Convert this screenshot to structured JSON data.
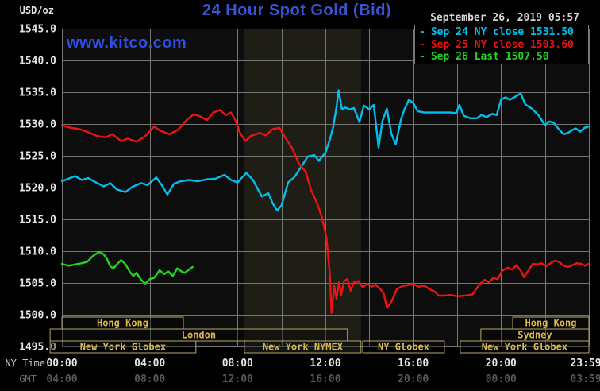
{
  "header": {
    "units_label": "USD/oz",
    "title": "24 Hour Spot Gold (Bid)",
    "watermark": "www.kitco.com",
    "datetime": "September 26, 2019 05:57"
  },
  "legend": {
    "items": [
      {
        "marker": "-",
        "label": "Sep 24 NY close 1531.50",
        "color": "#00bfef"
      },
      {
        "marker": "-",
        "label": "Sep 25 NY close 1503.60",
        "color": "#ee1212"
      },
      {
        "marker": "-",
        "label": "Sep 26 Last 1507.50",
        "color": "#21d421"
      }
    ]
  },
  "colors": {
    "background": "#000000",
    "plot_bg": "#0d0d0d",
    "band": "#1e1e17",
    "grid": "#757575",
    "axis_text": "#e5e5e5",
    "gmt_text": "#575757",
    "title_blue": "#3a54d6",
    "watermark_blue": "#2e4ee8",
    "session_border": "#b7a765",
    "session_text": "#d7b94c",
    "legend_border": "#7a7a7a"
  },
  "axes": {
    "y": {
      "unit": "USD/oz",
      "min": 1495,
      "max": 1545,
      "step": 5,
      "tick_labels": [
        "1545.0",
        "1540.0",
        "1535.0",
        "1530.0",
        "1525.0",
        "1520.0",
        "1515.0",
        "1510.0",
        "1505.0",
        "1500.0",
        "1495.0"
      ]
    },
    "x": {
      "row1_caption": "NY Time",
      "row2_caption": "GMT",
      "ticks": [
        {
          "t": 0,
          "ny": "00:00",
          "gmt": "04:00"
        },
        {
          "t": 4,
          "ny": "04:00",
          "gmt": "08:00"
        },
        {
          "t": 8,
          "ny": "08:00",
          "gmt": "12:00"
        },
        {
          "t": 12,
          "ny": "12:00",
          "gmt": "16:00"
        },
        {
          "t": 16,
          "ny": "16:00",
          "gmt": "20:00"
        },
        {
          "t": 20,
          "ny": "20:00",
          "gmt": "00:00"
        },
        {
          "t": 23.983,
          "ny": "23:59",
          "gmt": "03:59"
        }
      ]
    }
  },
  "highlight_band": {
    "t1": 8.31,
    "t2": 13.62
  },
  "sessions": {
    "boxes": [
      {
        "row": 0,
        "label": "Hong Kong",
        "t1": 0,
        "t2": 5.53
      },
      {
        "row": 1,
        "label": "London",
        "t1": -0.54,
        "t2": 13.0
      },
      {
        "row": 2,
        "label": "New York Globex",
        "t1": -0.54,
        "t2": 6.1
      },
      {
        "row": 2,
        "label": "New York NYMEX",
        "t1": 8.31,
        "t2": 13.62
      },
      {
        "row": 2,
        "label": "NY Globex",
        "t1": 13.7,
        "t2": 17.42
      },
      {
        "row": 2,
        "label": "New York Globex",
        "t1": 18.14,
        "t2": 24
      },
      {
        "row": 1,
        "label": "Sydney",
        "t1": 19.08,
        "t2": 24
      },
      {
        "row": 0,
        "label": "Hong Kong",
        "t1": 20.53,
        "t2": 24
      }
    ]
  },
  "chart_data": {
    "type": "line",
    "title": "24 Hour Spot Gold (Bid)",
    "xlabel": "NY Time (hours, 00:00-23:59)",
    "ylabel": "USD/oz",
    "ylim": [
      1495,
      1545
    ],
    "xlim_hours": [
      0,
      24
    ],
    "grid": true,
    "legend_position": "top-right",
    "series": [
      {
        "name": "Sep 24",
        "close_label": "NY close 1531.50",
        "close_value": 1531.5,
        "color": "#00bfef",
        "points": [
          [
            0,
            1521.0
          ],
          [
            0.3,
            1521.4
          ],
          [
            0.6,
            1521.8
          ],
          [
            0.9,
            1521.2
          ],
          [
            1.2,
            1521.5
          ],
          [
            1.5,
            1520.9
          ],
          [
            1.9,
            1520.2
          ],
          [
            2.2,
            1520.7
          ],
          [
            2.5,
            1519.7
          ],
          [
            2.9,
            1519.3
          ],
          [
            3.2,
            1520.1
          ],
          [
            3.6,
            1520.7
          ],
          [
            3.9,
            1520.4
          ],
          [
            4.3,
            1521.6
          ],
          [
            4.6,
            1520.1
          ],
          [
            4.8,
            1518.9
          ],
          [
            5.1,
            1520.6
          ],
          [
            5.4,
            1521.0
          ],
          [
            5.8,
            1521.2
          ],
          [
            6.2,
            1521.0
          ],
          [
            6.6,
            1521.3
          ],
          [
            7.0,
            1521.4
          ],
          [
            7.4,
            1522.0
          ],
          [
            7.7,
            1521.2
          ],
          [
            8.0,
            1520.8
          ],
          [
            8.4,
            1522.3
          ],
          [
            8.7,
            1521.2
          ],
          [
            9.1,
            1518.6
          ],
          [
            9.4,
            1519.1
          ],
          [
            9.6,
            1517.5
          ],
          [
            9.8,
            1516.4
          ],
          [
            10.0,
            1517.2
          ],
          [
            10.3,
            1520.8
          ],
          [
            10.6,
            1521.7
          ],
          [
            10.9,
            1523.3
          ],
          [
            11.2,
            1524.9
          ],
          [
            11.5,
            1525.1
          ],
          [
            11.7,
            1524.2
          ],
          [
            12.0,
            1525.5
          ],
          [
            12.2,
            1527.5
          ],
          [
            12.35,
            1529.5
          ],
          [
            12.5,
            1532.5
          ],
          [
            12.6,
            1535.3
          ],
          [
            12.75,
            1532.3
          ],
          [
            12.9,
            1532.6
          ],
          [
            13.1,
            1532.3
          ],
          [
            13.3,
            1532.5
          ],
          [
            13.55,
            1530.3
          ],
          [
            13.75,
            1532.9
          ],
          [
            14.0,
            1532.3
          ],
          [
            14.2,
            1533.0
          ],
          [
            14.42,
            1526.3
          ],
          [
            14.6,
            1530.5
          ],
          [
            14.8,
            1532.4
          ],
          [
            15.0,
            1528.5
          ],
          [
            15.2,
            1526.8
          ],
          [
            15.45,
            1530.8
          ],
          [
            15.6,
            1532.3
          ],
          [
            15.8,
            1533.8
          ],
          [
            16.0,
            1533.3
          ],
          [
            16.2,
            1532.0
          ],
          [
            16.5,
            1531.8
          ],
          [
            16.8,
            1531.8
          ],
          [
            17.1,
            1531.8
          ],
          [
            17.4,
            1531.8
          ],
          [
            17.7,
            1531.8
          ],
          [
            17.95,
            1531.7
          ],
          [
            18.1,
            1533.0
          ],
          [
            18.3,
            1531.3
          ],
          [
            18.6,
            1530.9
          ],
          [
            18.9,
            1530.9
          ],
          [
            19.1,
            1531.4
          ],
          [
            19.35,
            1531.1
          ],
          [
            19.6,
            1531.6
          ],
          [
            19.8,
            1531.4
          ],
          [
            20.0,
            1533.8
          ],
          [
            20.2,
            1534.2
          ],
          [
            20.4,
            1533.8
          ],
          [
            20.65,
            1534.3
          ],
          [
            20.9,
            1534.8
          ],
          [
            21.1,
            1533.1
          ],
          [
            21.4,
            1532.4
          ],
          [
            21.7,
            1531.4
          ],
          [
            22.0,
            1529.8
          ],
          [
            22.2,
            1530.4
          ],
          [
            22.4,
            1530.2
          ],
          [
            22.6,
            1529.3
          ],
          [
            22.85,
            1528.4
          ],
          [
            23.05,
            1528.6
          ],
          [
            23.2,
            1529.0
          ],
          [
            23.4,
            1529.3
          ],
          [
            23.6,
            1528.8
          ],
          [
            23.8,
            1529.4
          ],
          [
            23.98,
            1529.6
          ]
        ]
      },
      {
        "name": "Sep 25",
        "close_label": "NY close 1503.60",
        "close_value": 1503.6,
        "color": "#ee1212",
        "points": [
          [
            0,
            1529.8
          ],
          [
            0.4,
            1529.4
          ],
          [
            0.8,
            1529.2
          ],
          [
            1.2,
            1528.7
          ],
          [
            1.6,
            1528.1
          ],
          [
            2.0,
            1527.9
          ],
          [
            2.3,
            1528.4
          ],
          [
            2.7,
            1527.3
          ],
          [
            3.0,
            1527.7
          ],
          [
            3.4,
            1527.2
          ],
          [
            3.8,
            1528.1
          ],
          [
            4.2,
            1529.6
          ],
          [
            4.5,
            1528.9
          ],
          [
            4.9,
            1528.4
          ],
          [
            5.3,
            1529.1
          ],
          [
            5.7,
            1530.7
          ],
          [
            6.0,
            1531.5
          ],
          [
            6.3,
            1531.2
          ],
          [
            6.6,
            1530.6
          ],
          [
            6.9,
            1531.8
          ],
          [
            7.2,
            1532.2
          ],
          [
            7.45,
            1531.4
          ],
          [
            7.7,
            1531.8
          ],
          [
            7.9,
            1530.6
          ],
          [
            8.1,
            1528.7
          ],
          [
            8.35,
            1527.3
          ],
          [
            8.6,
            1528.1
          ],
          [
            9.0,
            1528.6
          ],
          [
            9.3,
            1528.2
          ],
          [
            9.6,
            1529.2
          ],
          [
            9.9,
            1529.4
          ],
          [
            10.2,
            1527.7
          ],
          [
            10.5,
            1526.1
          ],
          [
            10.8,
            1523.7
          ],
          [
            11.1,
            1522.5
          ],
          [
            11.35,
            1519.6
          ],
          [
            11.6,
            1517.7
          ],
          [
            11.85,
            1515.3
          ],
          [
            12.05,
            1512.0
          ],
          [
            12.2,
            1506.5
          ],
          [
            12.28,
            1500.3
          ],
          [
            12.4,
            1504.6
          ],
          [
            12.5,
            1502.5
          ],
          [
            12.62,
            1505.1
          ],
          [
            12.72,
            1503.1
          ],
          [
            12.85,
            1505.3
          ],
          [
            13.0,
            1505.6
          ],
          [
            13.15,
            1503.8
          ],
          [
            13.3,
            1505.1
          ],
          [
            13.5,
            1505.3
          ],
          [
            13.7,
            1504.3
          ],
          [
            13.9,
            1504.9
          ],
          [
            14.1,
            1504.4
          ],
          [
            14.3,
            1504.7
          ],
          [
            14.5,
            1504.0
          ],
          [
            14.65,
            1503.4
          ],
          [
            14.8,
            1501.1
          ],
          [
            15.0,
            1502.0
          ],
          [
            15.25,
            1504.0
          ],
          [
            15.5,
            1504.5
          ],
          [
            15.75,
            1504.7
          ],
          [
            16.0,
            1504.8
          ],
          [
            16.25,
            1504.4
          ],
          [
            16.5,
            1504.6
          ],
          [
            16.75,
            1504.0
          ],
          [
            17.0,
            1503.6
          ],
          [
            17.15,
            1503.0
          ],
          [
            17.4,
            1503.0
          ],
          [
            17.7,
            1503.1
          ],
          [
            18.0,
            1502.9
          ],
          [
            18.35,
            1503.0
          ],
          [
            18.7,
            1503.2
          ],
          [
            19.0,
            1504.7
          ],
          [
            19.25,
            1505.5
          ],
          [
            19.45,
            1505.1
          ],
          [
            19.65,
            1505.8
          ],
          [
            19.85,
            1505.6
          ],
          [
            20.05,
            1506.9
          ],
          [
            20.3,
            1507.4
          ],
          [
            20.5,
            1507.1
          ],
          [
            20.7,
            1507.8
          ],
          [
            20.9,
            1506.9
          ],
          [
            21.05,
            1505.9
          ],
          [
            21.25,
            1507.0
          ],
          [
            21.45,
            1508.0
          ],
          [
            21.65,
            1507.9
          ],
          [
            21.85,
            1508.1
          ],
          [
            22.05,
            1507.6
          ],
          [
            22.25,
            1508.1
          ],
          [
            22.45,
            1508.5
          ],
          [
            22.65,
            1508.3
          ],
          [
            22.85,
            1507.7
          ],
          [
            23.05,
            1507.5
          ],
          [
            23.25,
            1507.8
          ],
          [
            23.45,
            1508.1
          ],
          [
            23.65,
            1508.0
          ],
          [
            23.82,
            1507.7
          ],
          [
            23.98,
            1508.0
          ]
        ]
      },
      {
        "name": "Sep 26",
        "close_label": "Last 1507.50",
        "close_value": 1507.5,
        "color": "#21d421",
        "points": [
          [
            0,
            1508.0
          ],
          [
            0.3,
            1507.7
          ],
          [
            0.6,
            1507.9
          ],
          [
            0.9,
            1508.1
          ],
          [
            1.15,
            1508.3
          ],
          [
            1.4,
            1509.2
          ],
          [
            1.7,
            1509.9
          ],
          [
            1.9,
            1509.5
          ],
          [
            2.05,
            1508.8
          ],
          [
            2.2,
            1507.6
          ],
          [
            2.35,
            1507.3
          ],
          [
            2.5,
            1507.9
          ],
          [
            2.7,
            1508.6
          ],
          [
            2.9,
            1507.9
          ],
          [
            3.1,
            1506.7
          ],
          [
            3.25,
            1506.1
          ],
          [
            3.4,
            1506.6
          ],
          [
            3.6,
            1505.5
          ],
          [
            3.8,
            1504.9
          ],
          [
            4.0,
            1505.6
          ],
          [
            4.2,
            1505.8
          ],
          [
            4.45,
            1507.0
          ],
          [
            4.65,
            1506.4
          ],
          [
            4.85,
            1506.8
          ],
          [
            5.05,
            1506.1
          ],
          [
            5.25,
            1507.3
          ],
          [
            5.45,
            1506.8
          ],
          [
            5.6,
            1506.6
          ],
          [
            5.75,
            1507.0
          ],
          [
            5.95,
            1507.5
          ]
        ]
      }
    ]
  }
}
